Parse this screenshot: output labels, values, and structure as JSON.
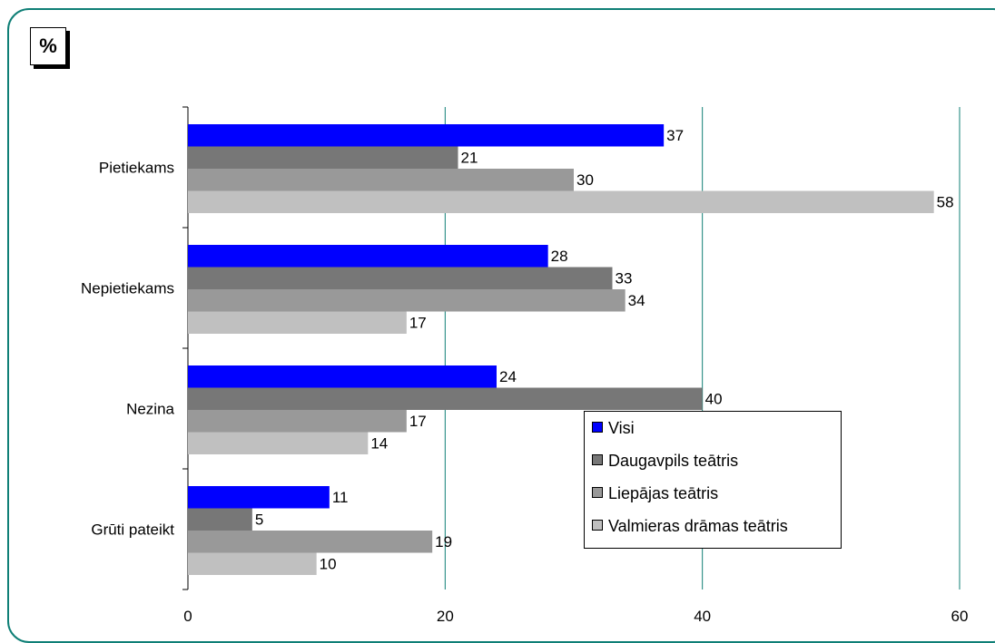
{
  "unit_label": "%",
  "chart_data": {
    "type": "bar",
    "orientation": "horizontal",
    "categories": [
      "Pietiekams",
      "Nepietiekams",
      "Nezina",
      "Grūti pateikt"
    ],
    "series": [
      {
        "name": "Visi",
        "values": [
          37,
          28,
          24,
          11
        ],
        "color": "#0000ff"
      },
      {
        "name": "Daugavpils teātris",
        "values": [
          21,
          33,
          40,
          5
        ],
        "color": "#777777"
      },
      {
        "name": "Liepājas teātris",
        "values": [
          30,
          34,
          17,
          19
        ],
        "color": "#999999"
      },
      {
        "name": "Valmieras drāmas teātris",
        "values": [
          58,
          17,
          14,
          10
        ],
        "color": "#c0c0c0"
      }
    ],
    "xlim": [
      0,
      60
    ],
    "xticks": [
      0,
      20,
      40,
      60
    ],
    "grid": true,
    "gridline_color": "#0f7f76",
    "legend_position": "bottom-right"
  }
}
